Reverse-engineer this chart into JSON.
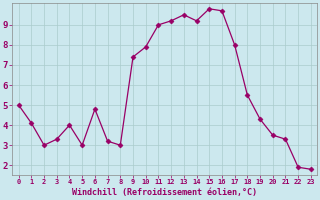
{
  "x": [
    0,
    1,
    2,
    3,
    4,
    5,
    6,
    7,
    8,
    9,
    10,
    11,
    12,
    13,
    14,
    15,
    16,
    17,
    18,
    19,
    20,
    21,
    22,
    23
  ],
  "y": [
    5.0,
    4.1,
    3.0,
    3.3,
    4.0,
    3.0,
    4.8,
    3.2,
    3.0,
    7.4,
    7.9,
    9.0,
    9.2,
    9.5,
    9.2,
    9.8,
    9.7,
    8.0,
    5.5,
    4.3,
    3.5,
    3.3,
    1.9,
    1.8
  ],
  "line_color": "#990066",
  "marker": "D",
  "marker_size": 2.5,
  "bg_color": "#cce8ee",
  "grid_color": "#aacccc",
  "tick_color": "#990066",
  "xlabel": "Windchill (Refroidissement éolien,°C)",
  "xlabel_color": "#990066",
  "ylabel_ticks": [
    2,
    3,
    4,
    5,
    6,
    7,
    8,
    9
  ],
  "xlim": [
    -0.5,
    23.5
  ],
  "ylim": [
    1.5,
    10.1
  ],
  "spine_color": "#888888"
}
